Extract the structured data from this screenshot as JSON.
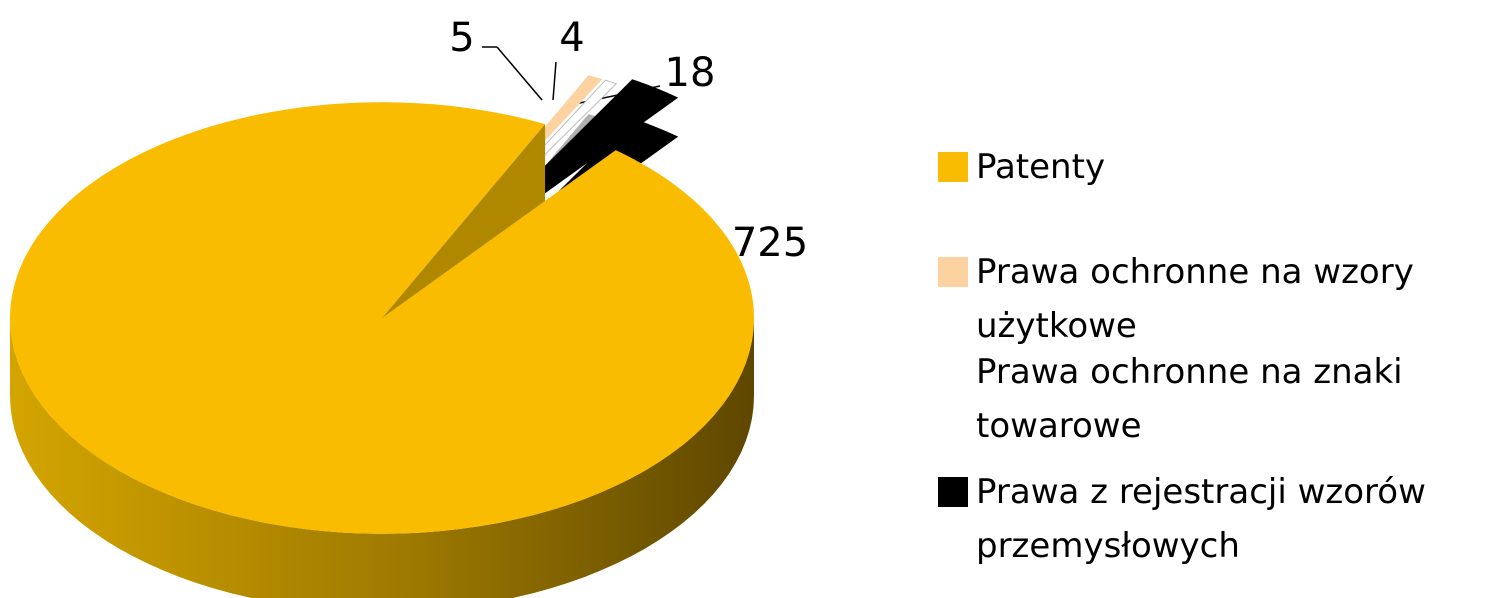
{
  "chart_data": {
    "type": "pie",
    "categories": [
      "Patenty",
      "Prawa ochronne na wzory użytkowe",
      "Prawa ochronne na znaki towarowe",
      "Prawa z rejestracji wzorów przemysłowych"
    ],
    "values": [
      725,
      5,
      4,
      18
    ],
    "colors": [
      "#f9bc00",
      "#fcd3a0",
      "#ffffff",
      "#000000"
    ],
    "legend": "right"
  }
}
